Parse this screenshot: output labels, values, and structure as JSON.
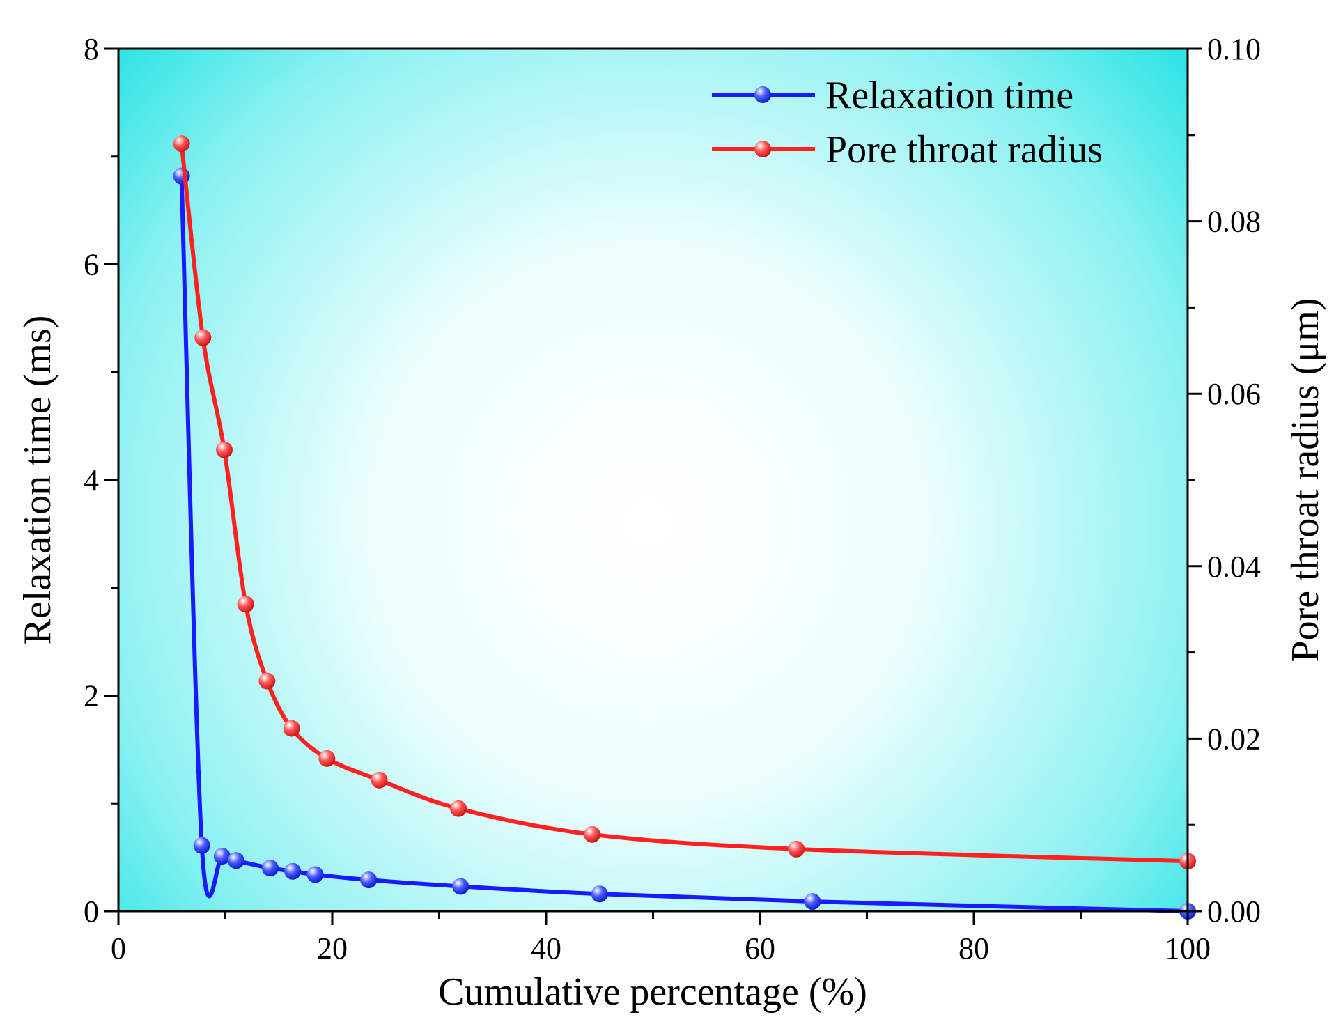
{
  "chart_data": {
    "type": "line",
    "title": "",
    "xlabel": "Cumulative percentage (%)",
    "ylabel": "Relaxation time (ms)",
    "y2label": "Pore throat radius (μm)",
    "xlim": [
      0,
      100
    ],
    "ylim": [
      0,
      8
    ],
    "y2lim": [
      0,
      0.1
    ],
    "x_ticks": [
      0,
      20,
      40,
      60,
      80,
      100
    ],
    "x_tick_labels": [
      "0",
      "20",
      "40",
      "60",
      "80",
      "100"
    ],
    "y_ticks": [
      0,
      2,
      4,
      6,
      8
    ],
    "y_tick_labels": [
      "0",
      "2",
      "4",
      "6",
      "8"
    ],
    "y2_ticks": [
      0,
      0.02,
      0.04,
      0.06,
      0.08,
      0.1
    ],
    "y2_tick_labels": [
      "0.00",
      "0.02",
      "0.04",
      "0.06",
      "0.08",
      "0.10"
    ],
    "grid": false,
    "legend_position": "top-right",
    "background": {
      "type": "radial-gradient",
      "center_color": "#ffffff",
      "edge_color": "#00dede"
    },
    "series": [
      {
        "name": "Relaxation time",
        "axis": "left",
        "color": "#1a1aff",
        "marker": "circle",
        "x": [
          5.9,
          7.8,
          9.7,
          11.0,
          14.2,
          16.3,
          18.4,
          23.4,
          32.0,
          45.0,
          64.9,
          100
        ],
        "y": [
          6.82,
          0.61,
          0.51,
          0.47,
          0.4,
          0.37,
          0.34,
          0.29,
          0.23,
          0.16,
          0.09,
          0.0
        ]
      },
      {
        "name": "Pore throat radius",
        "axis": "right",
        "color": "#ff2020",
        "marker": "circle",
        "x": [
          5.9,
          7.9,
          9.9,
          11.9,
          13.9,
          16.2,
          19.5,
          24.4,
          31.8,
          44.3,
          63.4,
          100
        ],
        "y": [
          0.089,
          0.0665,
          0.0535,
          0.0356,
          0.0267,
          0.0212,
          0.0177,
          0.0152,
          0.0119,
          0.0089,
          0.0072,
          0.0058
        ]
      }
    ]
  }
}
